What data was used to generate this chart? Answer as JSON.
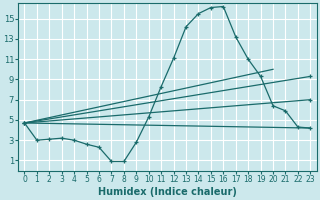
{
  "bg_color": "#cce8ec",
  "grid_color": "#ffffff",
  "line_color": "#1a6b6b",
  "xlabel": "Humidex (Indice chaleur)",
  "xlim": [
    -0.5,
    23.5
  ],
  "ylim": [
    0,
    16.5
  ],
  "xticks": [
    0,
    1,
    2,
    3,
    4,
    5,
    6,
    7,
    8,
    9,
    10,
    11,
    12,
    13,
    14,
    15,
    16,
    17,
    18,
    19,
    20,
    21,
    22,
    23
  ],
  "yticks": [
    1,
    3,
    5,
    7,
    9,
    11,
    13,
    15
  ],
  "line1_x": [
    0,
    1,
    2,
    3,
    4,
    5,
    6,
    7,
    8,
    9,
    10,
    11,
    12,
    13,
    14,
    15,
    16,
    17,
    18,
    19,
    20,
    21,
    22,
    23
  ],
  "line1_y": [
    4.7,
    3.0,
    3.1,
    3.2,
    3.0,
    2.6,
    2.3,
    0.9,
    0.9,
    2.8,
    5.3,
    8.3,
    11.1,
    14.2,
    15.5,
    16.1,
    16.2,
    13.2,
    11.0,
    9.3,
    6.4,
    5.9,
    4.3,
    4.2
  ],
  "line2_x": [
    0,
    19
  ],
  "line2_y": [
    4.7,
    9.3
  ],
  "line3_x": [
    0,
    20
  ],
  "line3_y": [
    4.7,
    9.3
  ],
  "line4_x": [
    0,
    23
  ],
  "line4_y": [
    4.7,
    4.2
  ],
  "line5_x": [
    0,
    23
  ],
  "line5_y": [
    4.7,
    4.2
  ]
}
